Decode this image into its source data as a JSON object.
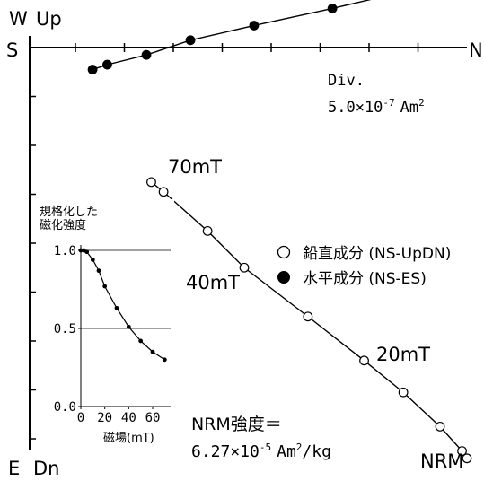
{
  "chart_data": [
    {
      "type": "scatter",
      "title": "",
      "axis_labels": {
        "top_left_horizontal": "W",
        "top_left_vertical": "Up",
        "left_horizontal": "S",
        "right_horizontal": "N",
        "bottom_left_horizontal": "E",
        "bottom_left_vertical": "Dn"
      },
      "scale_label": "Div.",
      "scale_value": "5.0×10",
      "scale_exponent": "-7",
      "scale_unit": "Am",
      "scale_unit_exponent": "2",
      "legend": [
        {
          "marker": "○",
          "label": "鉛直成分 (NS-UpDN)"
        },
        {
          "marker": "●",
          "label": "水平成分 (NS-ES)"
        }
      ],
      "annotations": [
        "70mT",
        "40mT",
        "20mT",
        "NRM"
      ],
      "nrm_label": "NRM強度＝",
      "nrm_value": "6.27×10",
      "nrm_exponent": "-5",
      "nrm_unit": "Am",
      "nrm_unit_exponent": "2",
      "nrm_unit_tail": "/kg",
      "series": [
        {
          "name": "水平成分 (NS-ES)",
          "points": [
            [
              7.65,
              -0.45
            ],
            [
              7.35,
              -0.35
            ],
            [
              6.55,
              -0.15
            ],
            [
              5.65,
              0.15
            ],
            [
              4.35,
              0.45
            ],
            [
              2.75,
              0.8
            ],
            [
              1.25,
              1.15
            ],
            [
              0.6,
              1.4
            ],
            [
              0.15,
              1.75
            ],
            [
              0.05,
              1.85
            ]
          ]
        },
        {
          "name": "鉛直成分 (NS-UpDN)",
          "points": [
            [
              6.45,
              -2.75
            ],
            [
              6.2,
              -2.95
            ],
            [
              5.3,
              -3.75
            ],
            [
              4.55,
              -4.5
            ],
            [
              3.25,
              -5.5
            ],
            [
              2.1,
              -6.4
            ],
            [
              1.3,
              -7.05
            ],
            [
              0.55,
              -7.75
            ],
            [
              0.1,
              -8.25
            ],
            [
              0.0,
              -8.4
            ]
          ]
        }
      ],
      "tick_spacing": 1.0
    },
    {
      "type": "line",
      "title": "規格化した\n磁化強度",
      "xlabel": "磁場(mT)",
      "ylabel": "",
      "xlim": [
        0,
        75
      ],
      "ylim": [
        0.0,
        1.0
      ],
      "x_ticks": [
        "0",
        "20",
        "40",
        "60"
      ],
      "y_ticks": [
        "0.0",
        "0.5",
        "1.0"
      ],
      "x": [
        0,
        2.5,
        5,
        10,
        15,
        20,
        30,
        40,
        50,
        60,
        70
      ],
      "y": [
        1.0,
        1.0,
        0.99,
        0.94,
        0.87,
        0.77,
        0.63,
        0.51,
        0.42,
        0.35,
        0.3
      ]
    }
  ]
}
